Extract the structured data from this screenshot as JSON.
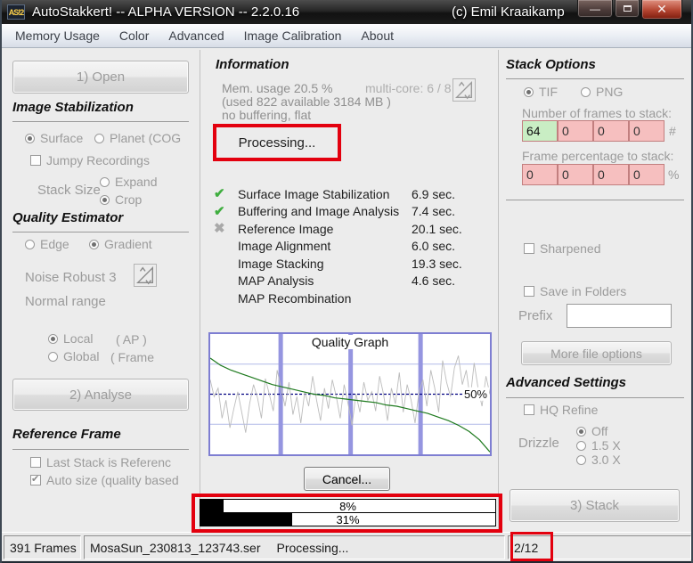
{
  "window": {
    "title": "AutoStakkert! -- ALPHA VERSION -- 2.2.0.16",
    "copyright": "(c) Emil Kraaikamp",
    "app_icon_text": "AS!2",
    "controls": {
      "minimize": "—",
      "close": "✕"
    }
  },
  "menu": {
    "items": [
      "Memory Usage",
      "Color",
      "Advanced",
      "Image Calibration",
      "About"
    ]
  },
  "left": {
    "open_button": "1) Open",
    "image_stabilization": {
      "heading": "Image Stabilization",
      "surface": "Surface",
      "planet": "Planet (COG",
      "jumpy": "Jumpy Recordings",
      "stack_size": "Stack Size",
      "expand": "Expand",
      "crop": "Crop"
    },
    "quality_estimator": {
      "heading": "Quality Estimator",
      "edge": "Edge",
      "gradient": "Gradient",
      "noise_robust": "Noise Robust 3",
      "normal_range": "Normal range",
      "local": "Local",
      "local_suffix": "( AP )",
      "global": "Global",
      "global_suffix": "( Frame"
    },
    "analyse_button": "2) Analyse",
    "reference_frame": {
      "heading": "Reference Frame",
      "last_stack": "Last Stack is Referenc",
      "auto_size": "Auto size (quality based"
    }
  },
  "center": {
    "heading": "Information",
    "mem_usage": "Mem. usage 20.5 %",
    "multi_core": "multi-core: 6 / 8",
    "mem_detail": "(used 822 available 3184 MB )",
    "buffering": "no buffering, flat",
    "processing": "Processing...",
    "tasks": [
      {
        "icon": "check-green",
        "label": "Surface Image Stabilization",
        "time": "6.9 sec."
      },
      {
        "icon": "check-green",
        "label": "Buffering and Image Analysis",
        "time": "7.4 sec."
      },
      {
        "icon": "x-gray",
        "label": "Reference Image",
        "time": "20.1 sec."
      },
      {
        "icon": "none",
        "label": "Image Alignment",
        "time": "6.0 sec."
      },
      {
        "icon": "none",
        "label": "Image Stacking",
        "time": "19.3 sec."
      },
      {
        "icon": "none",
        "label": "MAP Analysis",
        "time": "4.6 sec."
      },
      {
        "icon": "none",
        "label": "MAP Recombination",
        "time": ""
      }
    ],
    "cancel_button": "Cancel...",
    "progress": [
      {
        "percent": 8,
        "label": "8%"
      },
      {
        "percent": 31,
        "label": "31%"
      }
    ]
  },
  "right": {
    "stack_options": {
      "heading": "Stack Options",
      "tif": "TIF",
      "png": "PNG",
      "nframes_label": "Number of frames to stack:",
      "nframes_values": [
        "64",
        "0",
        "0",
        "0"
      ],
      "nframes_unit": "#",
      "fperc_label": "Frame percentage to stack:",
      "fperc_values": [
        "0",
        "0",
        "0",
        "0"
      ],
      "fperc_unit": "%",
      "sharpened": "Sharpened",
      "save_in_folders": "Save in Folders",
      "prefix_label": "Prefix",
      "prefix_value": "",
      "more_file_options": "More file options"
    },
    "advanced_settings": {
      "heading": "Advanced Settings",
      "hq_refine": "HQ Refine",
      "drizzle_label": "Drizzle",
      "drizzle_off": "Off",
      "drizzle_15": "1.5 X",
      "drizzle_30": "3.0 X"
    },
    "stack_button": "3) Stack"
  },
  "statusbar": {
    "frames": "391 Frames",
    "file": "MosaSun_230813_123743.ser",
    "activity": "Processing...",
    "counter": "2/12"
  },
  "chart_data": {
    "type": "line",
    "title": "Quality Graph",
    "annotation": "50%",
    "xlabel": "",
    "ylabel": "",
    "x_range": [
      0,
      100
    ],
    "y_range": [
      0,
      100
    ],
    "gridlines": {
      "horizontal": [
        25,
        50,
        75
      ],
      "vertical": [
        25,
        50,
        75
      ]
    },
    "series": [
      {
        "name": "sorted-quality-green",
        "color": "#1e7a1e",
        "values": [
          80,
          74,
          70,
          67,
          64,
          61,
          58,
          56,
          54,
          52,
          50,
          49,
          47,
          46,
          45,
          44,
          43,
          41,
          40,
          38,
          36,
          34,
          31,
          28,
          24,
          19,
          12,
          2
        ]
      },
      {
        "name": "frame-quality-gray",
        "color": "#bcbcbc",
        "values": [
          62,
          48,
          55,
          30,
          45,
          22,
          38,
          52,
          35,
          18,
          42,
          58,
          47,
          30,
          63,
          50,
          36,
          70,
          55,
          40,
          60,
          33,
          48,
          26,
          52,
          40,
          65,
          45,
          28,
          55,
          38,
          62,
          48,
          30,
          58,
          42,
          24,
          50,
          35,
          60,
          45,
          52,
          36,
          65,
          50,
          28,
          55,
          42,
          68,
          35,
          58,
          45,
          26,
          52,
          62,
          40,
          70,
          55,
          35,
          78,
          60,
          48,
          72,
          82,
          58,
          70,
          46,
          76,
          55,
          40,
          65,
          50
        ]
      }
    ],
    "colors": {
      "border": "#7e7ed2",
      "grid": "#b2bae8",
      "fifty_line": "#000080",
      "vertical_band": "#9595e0"
    }
  },
  "annotations": {
    "color": "#e3000e"
  }
}
